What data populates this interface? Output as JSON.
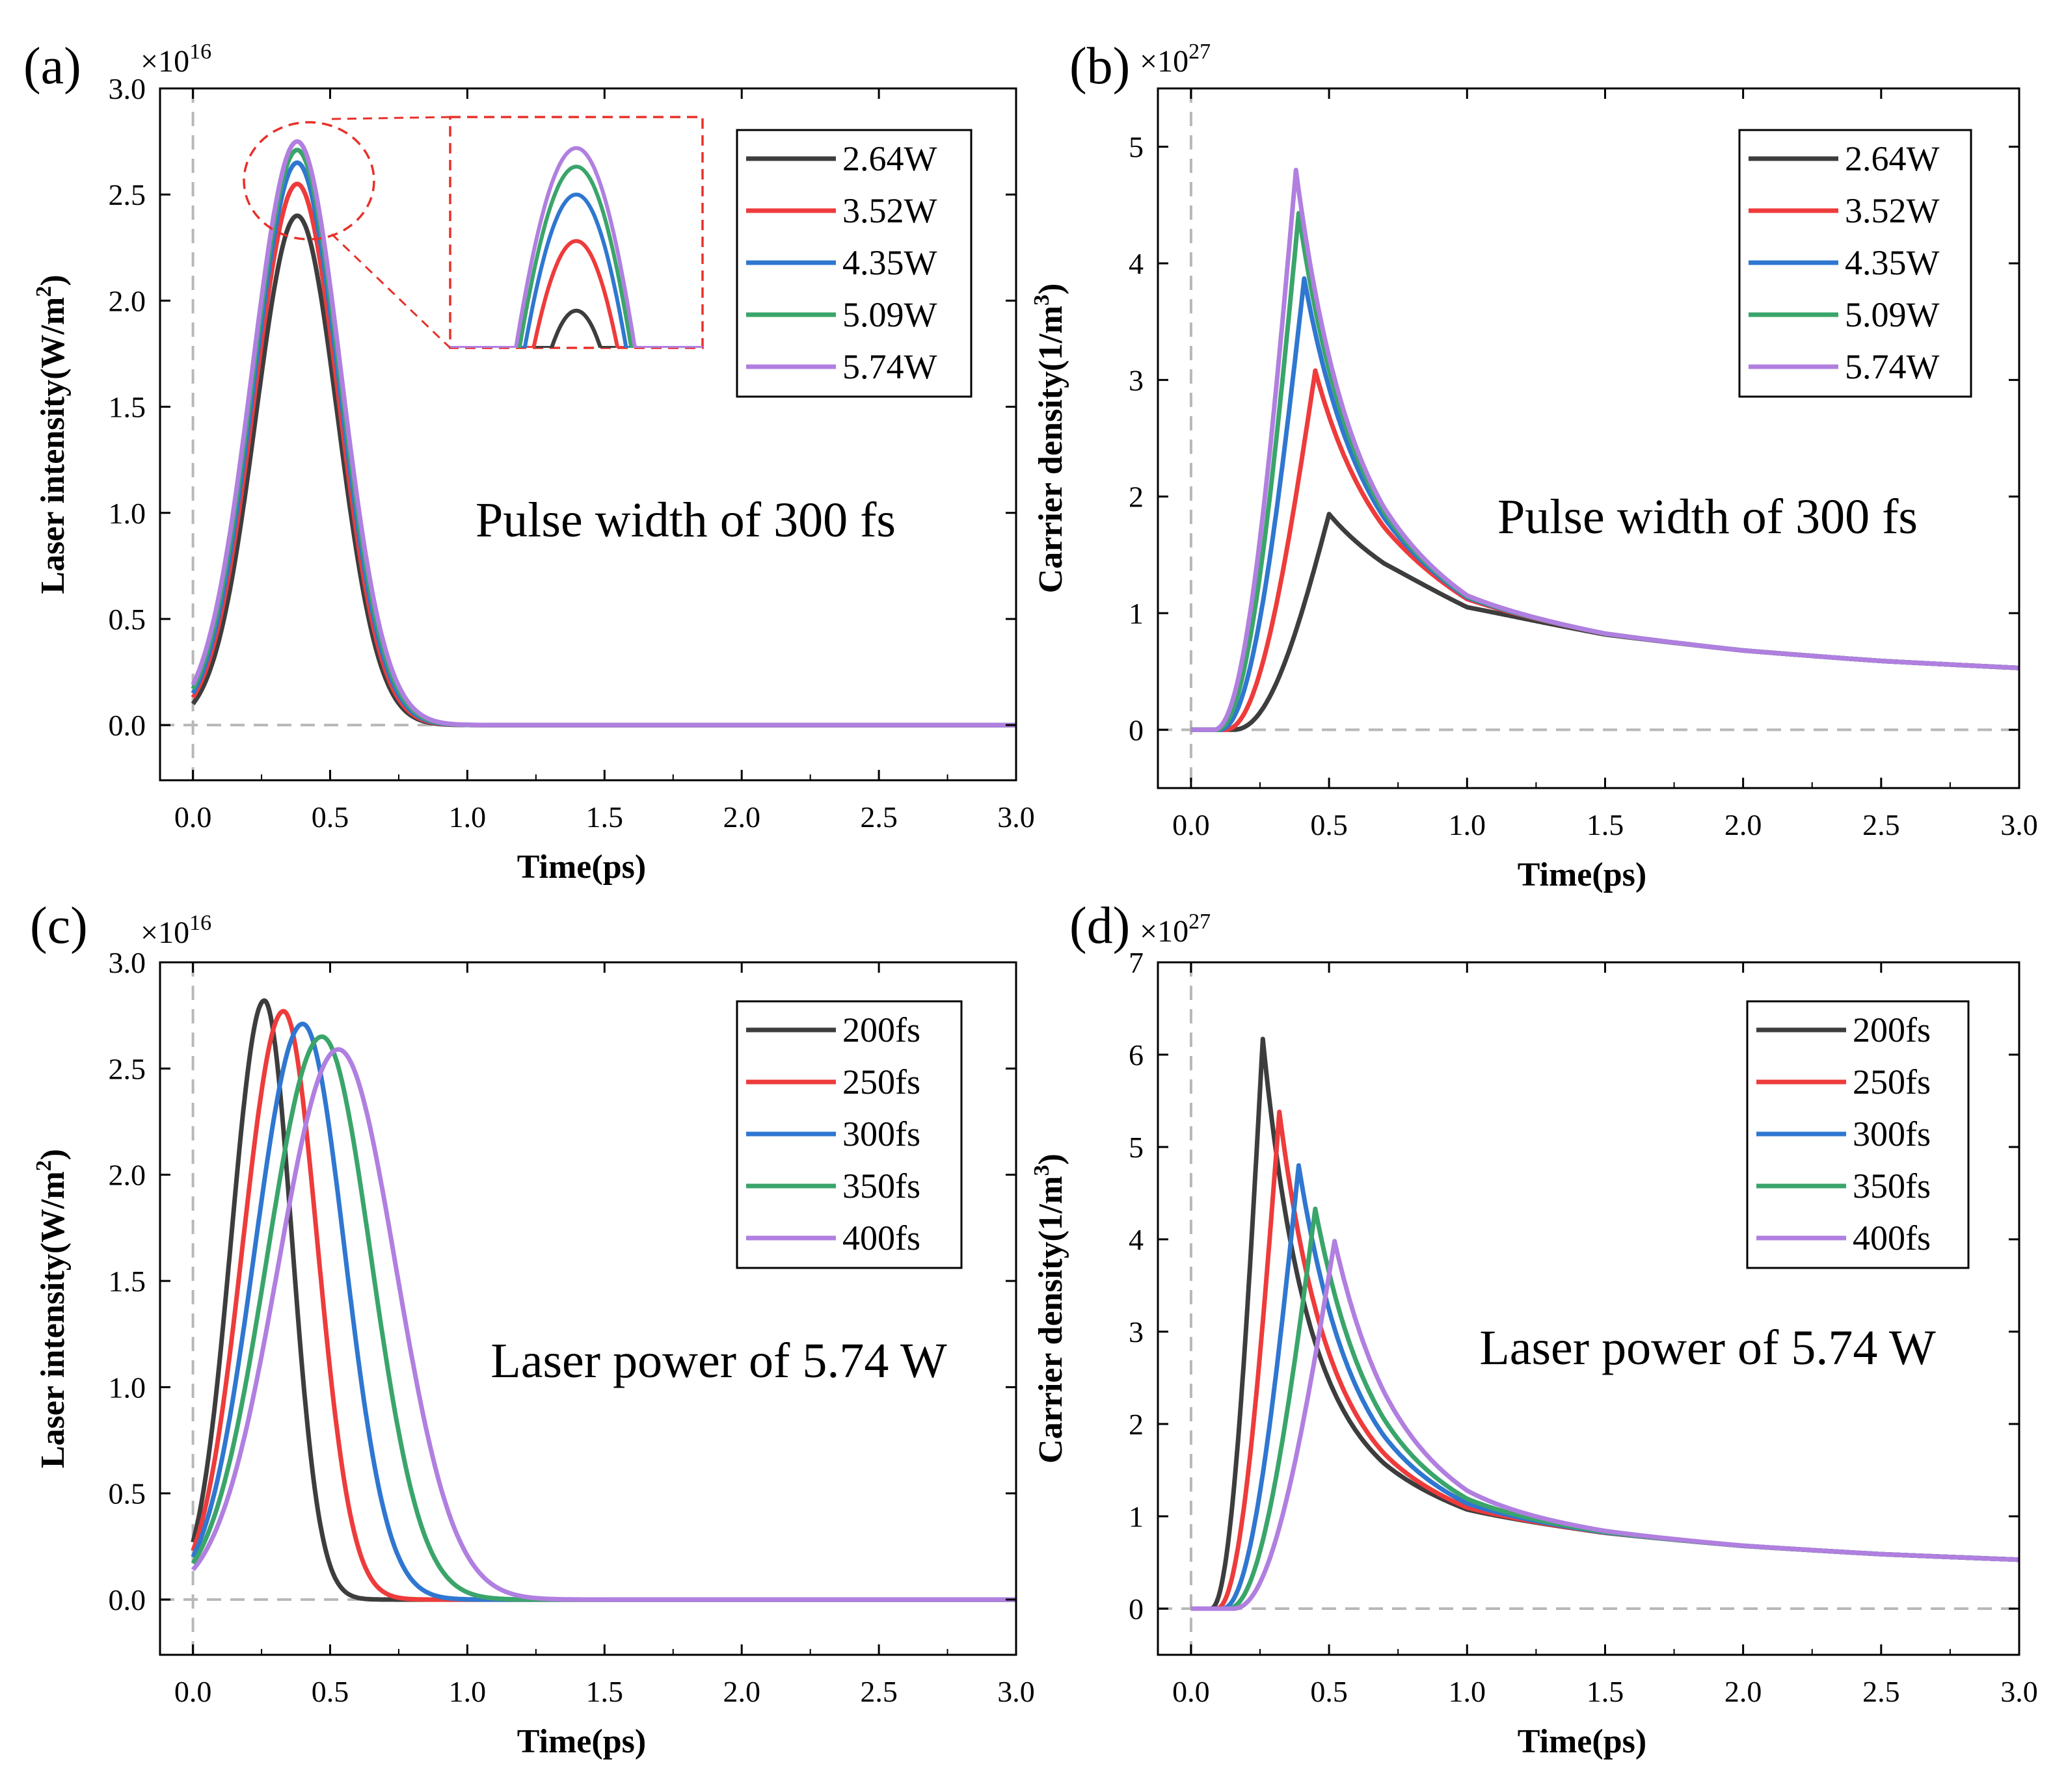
{
  "colors": {
    "black": "#3d3d3d",
    "red": "#ee3b3b",
    "blue": "#2f77d0",
    "green": "#3aa56a",
    "purple": "#b07fe0",
    "zero_line": "#b8b8b8",
    "zoom_marker": "#e8302a"
  },
  "chart_data": [
    {
      "id": "a",
      "type": "line",
      "panel_label": "(a)",
      "exponent_label": "×10",
      "exponent_power": "16",
      "xlabel": "Time(ps)",
      "ylabel_main": "Laser intensity(W/m",
      "ylabel_sup": "2",
      "ylabel_close": ")",
      "xlim": [
        -0.12,
        3.0
      ],
      "ylim": [
        -0.26,
        3.0
      ],
      "xticks": [
        0.0,
        0.5,
        1.0,
        1.5,
        2.0,
        2.5,
        3.0
      ],
      "xtick_labels": [
        "0.0",
        "0.5",
        "1.0",
        "1.5",
        "2.0",
        "2.5",
        "3.0"
      ],
      "yticks": [
        0.0,
        0.5,
        1.0,
        1.5,
        2.0,
        2.5,
        3.0
      ],
      "ytick_labels": [
        "0.0",
        "0.5",
        "1.0",
        "1.5",
        "2.0",
        "2.5",
        "3.0"
      ],
      "annotation": "Pulse width of 300 fs",
      "legend_position": "top-right",
      "inset_zoom": true,
      "series": [
        {
          "name": "2.64W",
          "color_key": "black",
          "peak_x": 0.38,
          "peak_y": 2.4,
          "start_y": 0.1,
          "end_x": 0.88
        },
        {
          "name": "3.52W",
          "color_key": "red",
          "peak_x": 0.38,
          "peak_y": 2.55,
          "start_y": 0.13,
          "end_x": 0.89
        },
        {
          "name": "4.35W",
          "color_key": "blue",
          "peak_x": 0.38,
          "peak_y": 2.65,
          "start_y": 0.15,
          "end_x": 0.9
        },
        {
          "name": "5.09W",
          "color_key": "green",
          "peak_x": 0.38,
          "peak_y": 2.71,
          "start_y": 0.17,
          "end_x": 0.91
        },
        {
          "name": "5.74W",
          "color_key": "purple",
          "peak_x": 0.38,
          "peak_y": 2.75,
          "start_y": 0.19,
          "end_x": 0.92
        }
      ]
    },
    {
      "id": "b",
      "type": "line",
      "panel_label": "(b)",
      "exponent_label": "×10",
      "exponent_power": "27",
      "xlabel": "Time(ps)",
      "ylabel_main": "Carrier density(1/m",
      "ylabel_sup": "3",
      "ylabel_close": ")",
      "xlim": [
        -0.12,
        3.0
      ],
      "ylim": [
        -0.5,
        5.5
      ],
      "xticks": [
        0.0,
        0.5,
        1.0,
        1.5,
        2.0,
        2.5,
        3.0
      ],
      "xtick_labels": [
        "0.0",
        "0.5",
        "1.0",
        "1.5",
        "2.0",
        "2.5",
        "3.0"
      ],
      "yticks": [
        0,
        1,
        2,
        3,
        4,
        5
      ],
      "ytick_labels": [
        "0",
        "1",
        "2",
        "3",
        "4",
        "5"
      ],
      "annotation": "Pulse width of 300 fs",
      "legend_position": "top-right",
      "series": [
        {
          "name": "2.64W",
          "color_key": "black",
          "peak_x": 0.5,
          "peak_y": 1.85,
          "rise_start": 0.15
        },
        {
          "name": "3.52W",
          "color_key": "red",
          "peak_x": 0.45,
          "peak_y": 3.08,
          "rise_start": 0.12
        },
        {
          "name": "4.35W",
          "color_key": "blue",
          "peak_x": 0.41,
          "peak_y": 3.87,
          "rise_start": 0.1
        },
        {
          "name": "5.09W",
          "color_key": "green",
          "peak_x": 0.39,
          "peak_y": 4.43,
          "rise_start": 0.09
        },
        {
          "name": "5.74W",
          "color_key": "purple",
          "peak_x": 0.38,
          "peak_y": 4.8,
          "rise_start": 0.08
        }
      ],
      "tail_points": [
        [
          0.7,
          1.55
        ],
        [
          1.0,
          1.08
        ],
        [
          1.5,
          0.82
        ],
        [
          2.0,
          0.68
        ],
        [
          2.5,
          0.59
        ],
        [
          3.0,
          0.53
        ]
      ]
    },
    {
      "id": "c",
      "type": "line",
      "panel_label": "(c)",
      "exponent_label": "×10",
      "exponent_power": "16",
      "xlabel": "Time(ps)",
      "ylabel_main": "Laser intensity(W/m",
      "ylabel_sup": "2",
      "ylabel_close": ")",
      "xlim": [
        -0.12,
        3.0
      ],
      "ylim": [
        -0.26,
        3.0
      ],
      "xticks": [
        0.0,
        0.5,
        1.0,
        1.5,
        2.0,
        2.5,
        3.0
      ],
      "xtick_labels": [
        "0.0",
        "0.5",
        "1.0",
        "1.5",
        "2.0",
        "2.5",
        "3.0"
      ],
      "yticks": [
        0.0,
        0.5,
        1.0,
        1.5,
        2.0,
        2.5,
        3.0
      ],
      "ytick_labels": [
        "0.0",
        "0.5",
        "1.0",
        "1.5",
        "2.0",
        "2.5",
        "3.0"
      ],
      "annotation": "Laser power of 5.74 W",
      "legend_position": "top-right",
      "series": [
        {
          "name": "200fs",
          "color_key": "black",
          "peak_x": 0.26,
          "peak_y": 2.82,
          "start_y": 0.27,
          "end_x": 0.6
        },
        {
          "name": "250fs",
          "color_key": "red",
          "peak_x": 0.33,
          "peak_y": 2.77,
          "start_y": 0.23,
          "end_x": 0.75
        },
        {
          "name": "300fs",
          "color_key": "blue",
          "peak_x": 0.4,
          "peak_y": 2.71,
          "start_y": 0.2,
          "end_x": 0.92
        },
        {
          "name": "350fs",
          "color_key": "green",
          "peak_x": 0.47,
          "peak_y": 2.65,
          "start_y": 0.17,
          "end_x": 1.08
        },
        {
          "name": "400fs",
          "color_key": "purple",
          "peak_x": 0.53,
          "peak_y": 2.59,
          "start_y": 0.14,
          "end_x": 1.24
        }
      ]
    },
    {
      "id": "d",
      "type": "line",
      "panel_label": "(d)",
      "exponent_label": "×10",
      "exponent_power": "27",
      "xlabel": "Time(ps)",
      "ylabel_main": "Carrier density(1/m",
      "ylabel_sup": "3",
      "ylabel_close": ")",
      "xlim": [
        -0.12,
        3.0
      ],
      "ylim": [
        -0.5,
        7.0
      ],
      "xticks": [
        0.0,
        0.5,
        1.0,
        1.5,
        2.0,
        2.5,
        3.0
      ],
      "xtick_labels": [
        "0.0",
        "0.5",
        "1.0",
        "1.5",
        "2.0",
        "2.5",
        "3.0"
      ],
      "yticks": [
        0,
        1,
        2,
        3,
        4,
        5,
        6,
        7
      ],
      "ytick_labels": [
        "0",
        "1",
        "2",
        "3",
        "4",
        "5",
        "6",
        "7"
      ],
      "annotation": "Laser power of 5.74 W",
      "legend_position": "top-right",
      "series": [
        {
          "name": "200fs",
          "color_key": "black",
          "peak_x": 0.26,
          "peak_y": 6.17,
          "rise_start": 0.07
        },
        {
          "name": "250fs",
          "color_key": "red",
          "peak_x": 0.32,
          "peak_y": 5.38,
          "rise_start": 0.09
        },
        {
          "name": "300fs",
          "color_key": "blue",
          "peak_x": 0.39,
          "peak_y": 4.8,
          "rise_start": 0.11
        },
        {
          "name": "350fs",
          "color_key": "green",
          "peak_x": 0.45,
          "peak_y": 4.33,
          "rise_start": 0.13
        },
        {
          "name": "400fs",
          "color_key": "purple",
          "peak_x": 0.52,
          "peak_y": 3.98,
          "rise_start": 0.15
        }
      ],
      "tail_points": [
        [
          0.7,
          1.4
        ],
        [
          1.0,
          1.05
        ],
        [
          1.5,
          0.82
        ],
        [
          2.0,
          0.68
        ],
        [
          2.5,
          0.59
        ],
        [
          3.0,
          0.53
        ]
      ]
    }
  ]
}
